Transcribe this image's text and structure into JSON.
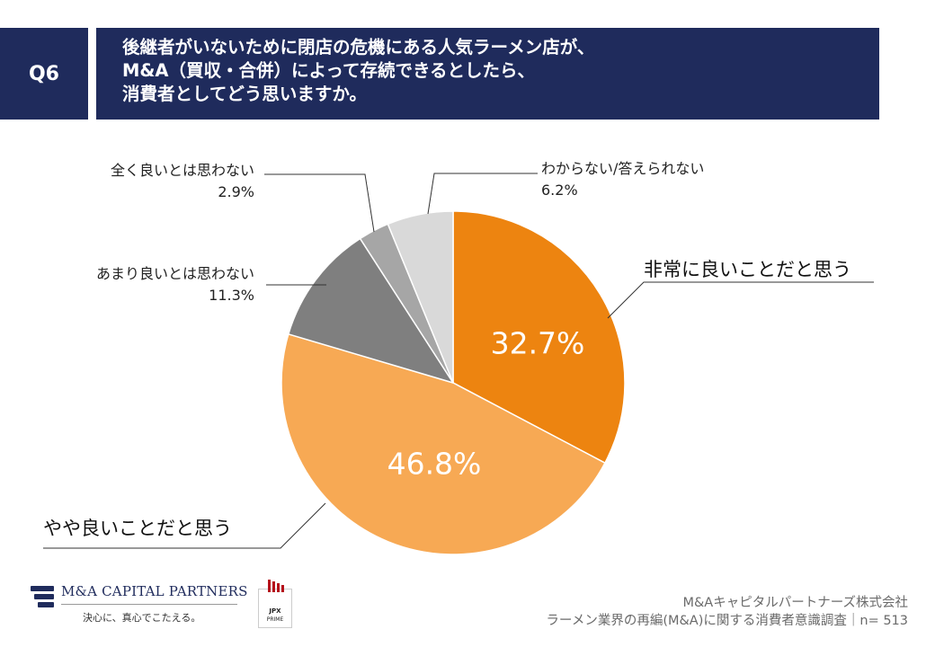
{
  "question": {
    "number": "Q6",
    "lines": [
      "後継者がいないために閉店の危機にある人気ラーメン店が、",
      "M&A（買収・合併）によって存続できるとしたら、",
      "消費者としてどう思いますか。"
    ]
  },
  "chart_data": {
    "type": "pie",
    "title": "後継者がいないために閉店の危機にある人気ラーメン店が、M&A（買収・合併）によって存続できるとしたら、消費者としてどう思いますか。",
    "start_angle": "12 o'clock",
    "direction": "clockwise",
    "slices": [
      {
        "label": "非常に良いことだと思う",
        "value": 32.7,
        "display": "32.7%",
        "color": "#ed8410"
      },
      {
        "label": "やや良いことだと思う",
        "value": 46.8,
        "display": "46.8%",
        "color": "#f7a954"
      },
      {
        "label": "あまり良いとは思わない",
        "value": 11.3,
        "display": "11.3%",
        "color": "#7f7f7f"
      },
      {
        "label": "全く良いとは思わない",
        "value": 2.9,
        "display": "2.9%",
        "color": "#a6a6a6"
      },
      {
        "label": "わからない/答えられない",
        "value": 6.2,
        "display": "6.2%",
        "color": "#d9d9d9"
      }
    ]
  },
  "logo": {
    "company": "M&A CAPITAL PARTNERS",
    "tagline": "決心に、真心でこたえる。",
    "badge_top": "JPX",
    "badge_bottom": "PRIME"
  },
  "footer": {
    "company": "M&Aキャピタルパートナーズ株式会社",
    "survey": "ラーメン業界の再編(M&A)に関する消費者意識調査｜n= 513"
  }
}
